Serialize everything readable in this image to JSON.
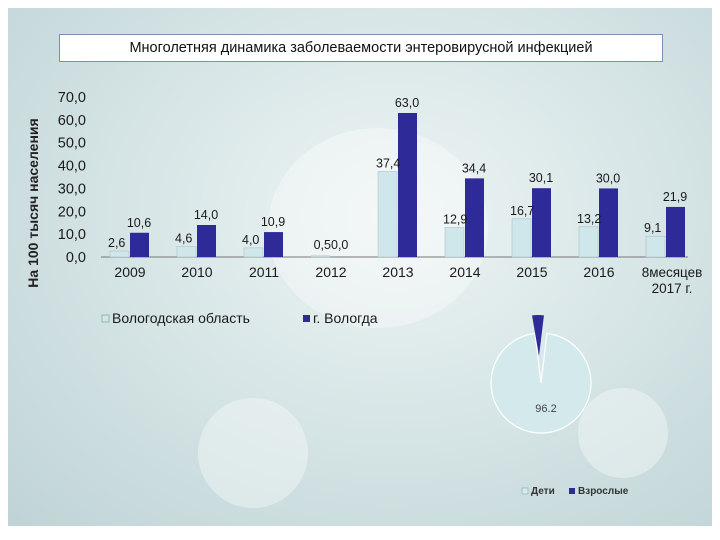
{
  "title": "Многолетняя динамика заболеваемости энтеровирусной инфекцией",
  "colors": {
    "series1": "#cfe6ea",
    "series2": "#2e2a98",
    "pie_children": "#d4e9ec",
    "pie_adults": "#2e2a98"
  },
  "chart_data": [
    {
      "type": "bar",
      "ylabel": "На 100 тысяч населения",
      "ylim": [
        0,
        70
      ],
      "yticks": [
        "70,0",
        "60,0",
        "50,0",
        "40,0",
        "30,0",
        "20,0",
        "10,0",
        "0,0"
      ],
      "categories": [
        "2009",
        "2010",
        "2011",
        "2012",
        "2013",
        "2014",
        "2015",
        "2016",
        "8месяцев 2017 г."
      ],
      "series": [
        {
          "name": "Вологодская область",
          "values": [
            2.6,
            4.6,
            4.0,
            0.5,
            37.4,
            12.9,
            16.7,
            13.2,
            9.1
          ],
          "labels": [
            "2,6",
            "4,6",
            "4,0",
            "0,5",
            "37,4",
            "12,9",
            "16,7",
            "13,2",
            "9,1"
          ]
        },
        {
          "name": "г. Вологда",
          "values": [
            10.6,
            14.0,
            10.9,
            0.0,
            63.0,
            34.4,
            30.1,
            30.0,
            21.9
          ],
          "labels": [
            "10,6",
            "14,0",
            "10,9",
            "0,0",
            "63,0",
            "34,4",
            "30,1",
            "30,0",
            "21,9"
          ]
        }
      ],
      "legend": "bottom-left"
    },
    {
      "type": "pie",
      "slices": [
        {
          "name": "Дети",
          "value": 96.2,
          "label": "96.2"
        },
        {
          "name": "Взрослые",
          "value": 3.8
        }
      ],
      "legend": "bottom"
    }
  ]
}
